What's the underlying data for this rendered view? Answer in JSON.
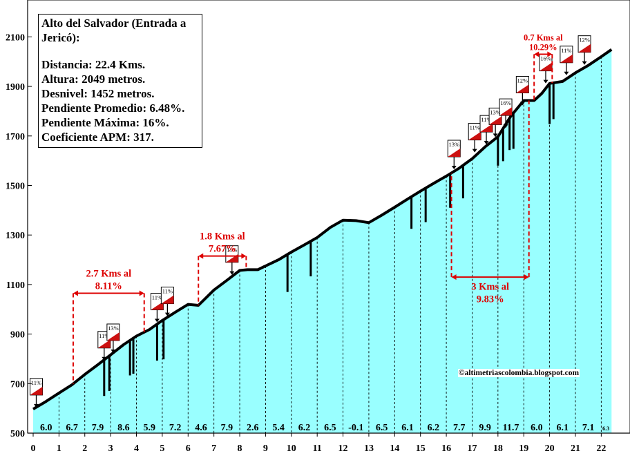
{
  "info": {
    "title": "Alto del Salvador (Entrada a Jericó):",
    "lines": [
      "Distancia: 22.4 Kms.",
      "Altura:  2049 metros.",
      "Desnivel: 1452 metros.",
      "Pendiente Promedio: 6.48%.",
      "Pendiente Máxima: 16%.",
      "Coeficiente APM: 317."
    ]
  },
  "credit": "©altimetriascolombia.blogspot.com",
  "colors": {
    "fill": "#99ffff",
    "profile": "#000000",
    "annotation": "#dd0000",
    "sign_red": "#cc1111"
  },
  "chart_data": {
    "type": "area",
    "title": "",
    "xlabel": "",
    "ylabel": "",
    "xlim": [
      0,
      22.4
    ],
    "ylim": [
      500,
      2200
    ],
    "xticks": [
      0,
      1,
      2,
      3,
      4,
      5,
      6,
      7,
      8,
      9,
      10,
      11,
      12,
      13,
      14,
      15,
      16,
      17,
      18,
      19,
      20,
      21,
      22
    ],
    "yticks": [
      500,
      700,
      900,
      1100,
      1300,
      1500,
      1700,
      1900,
      2100
    ],
    "grid": false,
    "profile": {
      "x": [
        0,
        0.5,
        1,
        1.5,
        2,
        2.5,
        3,
        3.5,
        4,
        4.5,
        5,
        5.5,
        6,
        6.4,
        7,
        7.5,
        8,
        8.3,
        8.7,
        9,
        9.5,
        10,
        10.5,
        11,
        11.5,
        12,
        12.5,
        13,
        13.5,
        14,
        14.5,
        15,
        15.5,
        16,
        16.5,
        17,
        17.5,
        18,
        18.5,
        19,
        19.4,
        19.7,
        20,
        20.5,
        21,
        21.5,
        22,
        22.4
      ],
      "y": [
        597,
        628,
        662,
        695,
        737,
        776,
        816,
        857,
        892,
        918,
        955,
        988,
        1020,
        1016,
        1078,
        1117,
        1157,
        1160,
        1160,
        1175,
        1200,
        1231,
        1260,
        1290,
        1330,
        1360,
        1358,
        1350,
        1380,
        1412,
        1445,
        1477,
        1508,
        1538,
        1570,
        1608,
        1656,
        1697,
        1780,
        1843,
        1843,
        1872,
        1912,
        1920,
        1955,
        1985,
        2020,
        2049
      ]
    },
    "segment_grades": [
      {
        "km": 0,
        "grade": "6.0"
      },
      {
        "km": 1,
        "grade": "6.7"
      },
      {
        "km": 2,
        "grade": "7.9"
      },
      {
        "km": 3,
        "grade": "8.6"
      },
      {
        "km": 4,
        "grade": "5.9"
      },
      {
        "km": 5,
        "grade": "7.2"
      },
      {
        "km": 6,
        "grade": "4.6"
      },
      {
        "km": 7,
        "grade": "7.9"
      },
      {
        "km": 8,
        "grade": "2.6"
      },
      {
        "km": 9,
        "grade": "5.4"
      },
      {
        "km": 10,
        "grade": "6.2"
      },
      {
        "km": 11,
        "grade": "6.5"
      },
      {
        "km": 12,
        "grade": "-0.1"
      },
      {
        "km": 13,
        "grade": "6.5"
      },
      {
        "km": 14,
        "grade": "6.1"
      },
      {
        "km": 15,
        "grade": "6.2"
      },
      {
        "km": 16,
        "grade": "7.7"
      },
      {
        "km": 17,
        "grade": "9.9"
      },
      {
        "km": 18,
        "grade": "11.7"
      },
      {
        "km": 19,
        "grade": "6.0"
      },
      {
        "km": 20,
        "grade": "6.1"
      },
      {
        "km": 21,
        "grade": "7.1"
      },
      {
        "km": 22,
        "grade": "6.3"
      }
    ],
    "ramps": [
      {
        "x": 2.75,
        "bottom": 650
      },
      {
        "x": 2.95,
        "bottom": 670
      },
      {
        "x": 3.75,
        "bottom": 733
      },
      {
        "x": 3.88,
        "bottom": 740
      },
      {
        "x": 4.8,
        "bottom": 793
      },
      {
        "x": 5.05,
        "bottom": 798
      },
      {
        "x": 9.85,
        "bottom": 1070
      },
      {
        "x": 10.75,
        "bottom": 1133
      },
      {
        "x": 14.65,
        "bottom": 1325
      },
      {
        "x": 15.2,
        "bottom": 1352
      },
      {
        "x": 16.15,
        "bottom": 1410
      },
      {
        "x": 16.65,
        "bottom": 1448
      },
      {
        "x": 18.0,
        "bottom": 1580
      },
      {
        "x": 18.2,
        "bottom": 1598
      },
      {
        "x": 18.45,
        "bottom": 1643
      },
      {
        "x": 18.6,
        "bottom": 1648
      },
      {
        "x": 20.0,
        "bottom": 1748
      },
      {
        "x": 20.15,
        "bottom": 1768
      }
    ],
    "grade_signs": [
      {
        "x": 0.12,
        "elev": 598,
        "label": "11%"
      },
      {
        "x": 2.75,
        "elev": 788,
        "label": "11%"
      },
      {
        "x": 3.1,
        "elev": 818,
        "label": "13%"
      },
      {
        "x": 4.8,
        "elev": 942,
        "label": "11%"
      },
      {
        "x": 5.2,
        "elev": 967,
        "label": "11%"
      },
      {
        "x": 7.7,
        "elev": 1134,
        "label": "11%"
      },
      {
        "x": 16.3,
        "elev": 1560,
        "label": "13%"
      },
      {
        "x": 17.1,
        "elev": 1628,
        "label": "11%"
      },
      {
        "x": 17.55,
        "elev": 1660,
        "label": "11%"
      },
      {
        "x": 17.9,
        "elev": 1690,
        "label": "13%"
      },
      {
        "x": 18.3,
        "elev": 1727,
        "label": "16%"
      },
      {
        "x": 18.95,
        "elev": 1818,
        "label": "12%"
      },
      {
        "x": 19.85,
        "elev": 1907,
        "label": "16%"
      },
      {
        "x": 20.65,
        "elev": 1940,
        "label": "11%"
      },
      {
        "x": 21.35,
        "elev": 1982,
        "label": "12%"
      }
    ],
    "climb_segments": [
      {
        "x1": 1.55,
        "x2": 4.3,
        "level": 1065,
        "below": true,
        "label": "2.7 Kms al\n8.11%"
      },
      {
        "x1": 6.4,
        "x2": 8.25,
        "level": 1215,
        "below": true,
        "label": "1.8 Kms al\n7.67%"
      },
      {
        "x1": 16.2,
        "x2": 19.2,
        "level": 1130,
        "below": false,
        "label": "3 Kms al\n9.83%"
      },
      {
        "x1": 19.4,
        "x2": 20.1,
        "level": 2030,
        "below": true,
        "label": "0.7 Kms al\n10.29%"
      }
    ]
  }
}
